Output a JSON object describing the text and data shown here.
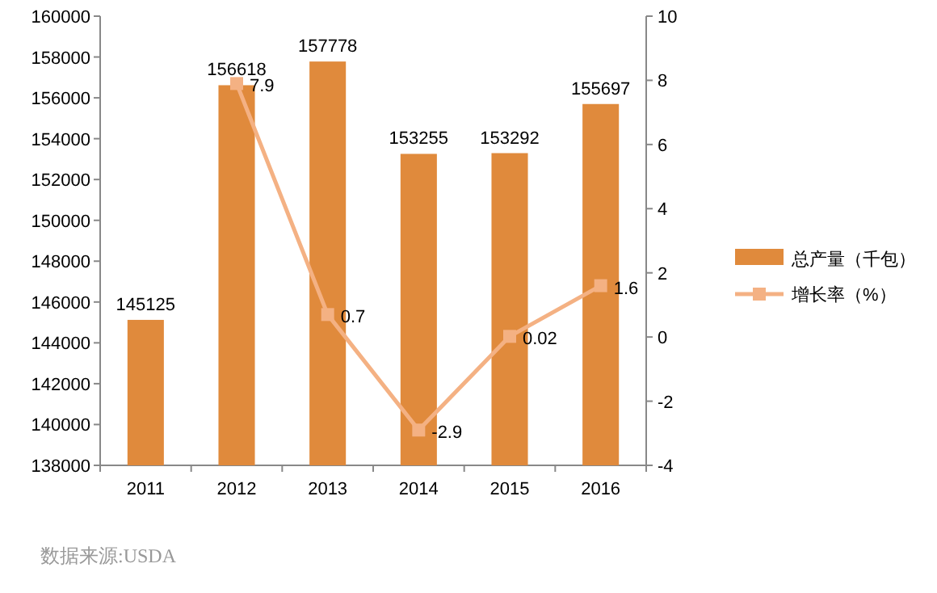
{
  "chart_data": {
    "type": "bar",
    "categories": [
      "2011",
      "2012",
      "2013",
      "2014",
      "2015",
      "2016"
    ],
    "series": [
      {
        "name": "总产量（千包）",
        "color": "#e08a3c",
        "values": [
          145125,
          156618,
          157778,
          153255,
          153292,
          155697
        ]
      },
      {
        "name": "增长率（%）",
        "type": "line",
        "axis": "y2",
        "color": "#f4b183",
        "values": [
          null,
          7.9,
          0.7,
          -2.9,
          0.02,
          1.6
        ]
      }
    ],
    "data_labels": true,
    "marker": "square",
    "ylim": [
      138000,
      160000
    ],
    "yticks": [
      138000,
      140000,
      142000,
      144000,
      146000,
      148000,
      150000,
      152000,
      154000,
      156000,
      158000,
      160000
    ],
    "y2lim": [
      -4,
      10
    ],
    "y2ticks": [
      -4,
      -2,
      0,
      2,
      4,
      6,
      8,
      10
    ],
    "legend": "right",
    "grid": false,
    "annotations": [
      "数据来源:USDA"
    ]
  }
}
